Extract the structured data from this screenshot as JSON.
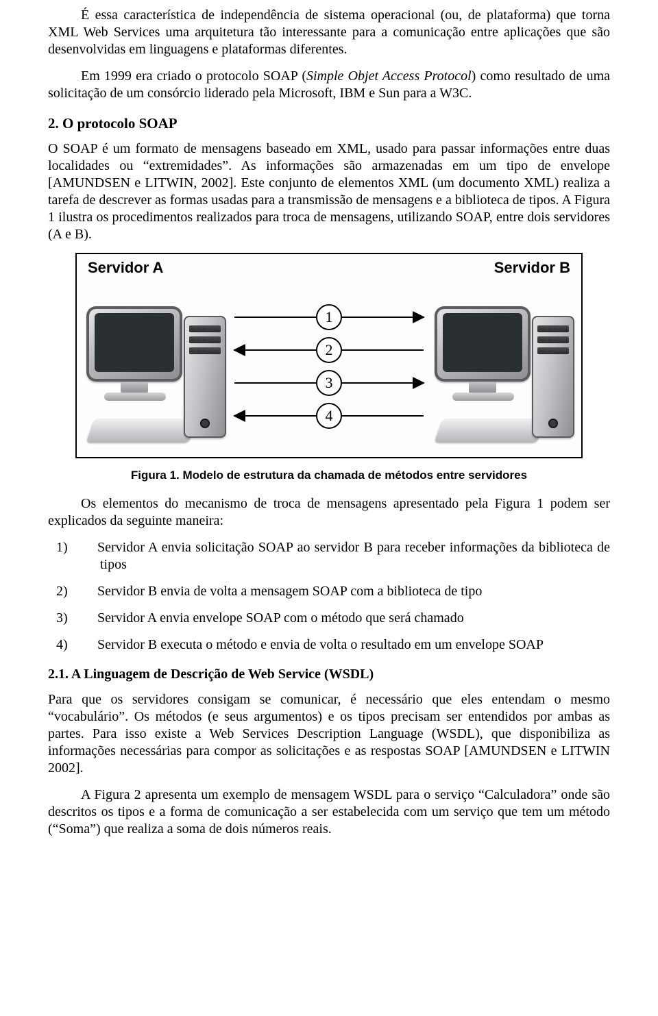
{
  "paragraphs": {
    "p1": "É essa característica de independência de sistema operacional (ou, de plataforma) que torna XML Web Services uma arquitetura tão interessante para a comunicação entre aplicações que são desenvolvidas em linguagens e plataformas diferentes.",
    "p2_pre": "Em 1999 era criado o protocolo SOAP (",
    "p2_italic": "Simple Objet Access Protocol",
    "p2_post": ") como resultado de uma solicitação de um consórcio liderado pela Microsoft, IBM e Sun para a W3C.",
    "sec2_title": "2. O protocolo SOAP",
    "p3": "O SOAP é um formato de mensagens baseado em XML, usado para passar informações entre duas localidades ou “extremidades”. As informações são armazenadas em um tipo de envelope [AMUNDSEN e LITWIN, 2002]. Este conjunto de elementos XML (um documento XML) realiza a tarefa de descrever as formas usadas para a transmissão de mensagens e a biblioteca de tipos. A Figura 1 ilustra os procedimentos realizados para troca de mensagens, utilizando SOAP, entre dois servidores (A e B).",
    "fig1_caption": "Figura 1. Modelo de estrutura da chamada de métodos entre servidores",
    "p4": "Os elementos do mecanismo de troca de mensagens apresentado pela Figura 1 podem ser explicados da seguinte maneira:",
    "sec21_title": "2.1. A Linguagem de Descrição de Web Service (WSDL)",
    "p5": "Para que os servidores consigam se comunicar, é necessário que eles entendam o mesmo “vocabulário”. Os métodos (e seus argumentos) e os tipos precisam ser entendidos por ambas as partes. Para isso existe a Web Services Description Language (WSDL), que disponibiliza as informações necessárias para compor as solicitações e as respostas SOAP [AMUNDSEN e LITWIN 2002].",
    "p6": "A Figura 2 apresenta um exemplo de mensagem WSDL para o serviço “Calculadora” onde são descritos os tipos e a forma de comunicação a ser estabelecida com um serviço que tem um método (“Soma”) que realiza a soma de dois números reais."
  },
  "figure1": {
    "server_a_label": "Servidor A",
    "server_b_label": "Servidor B",
    "arrows": [
      {
        "num": "1",
        "dir": "right"
      },
      {
        "num": "2",
        "dir": "left"
      },
      {
        "num": "3",
        "dir": "right"
      },
      {
        "num": "4",
        "dir": "left"
      }
    ]
  },
  "list": {
    "items": [
      {
        "marker": "1)",
        "text": "Servidor A envia solicitação SOAP ao servidor B para receber informações da biblioteca de tipos"
      },
      {
        "marker": "2)",
        "text": "Servidor B envia de volta a mensagem SOAP com a biblioteca de tipo"
      },
      {
        "marker": "3)",
        "text": "Servidor A envia envelope SOAP com o método que será chamado"
      },
      {
        "marker": "4)",
        "text": "Servidor B executa o método e envia de volta o resultado em um envelope SOAP"
      }
    ]
  }
}
